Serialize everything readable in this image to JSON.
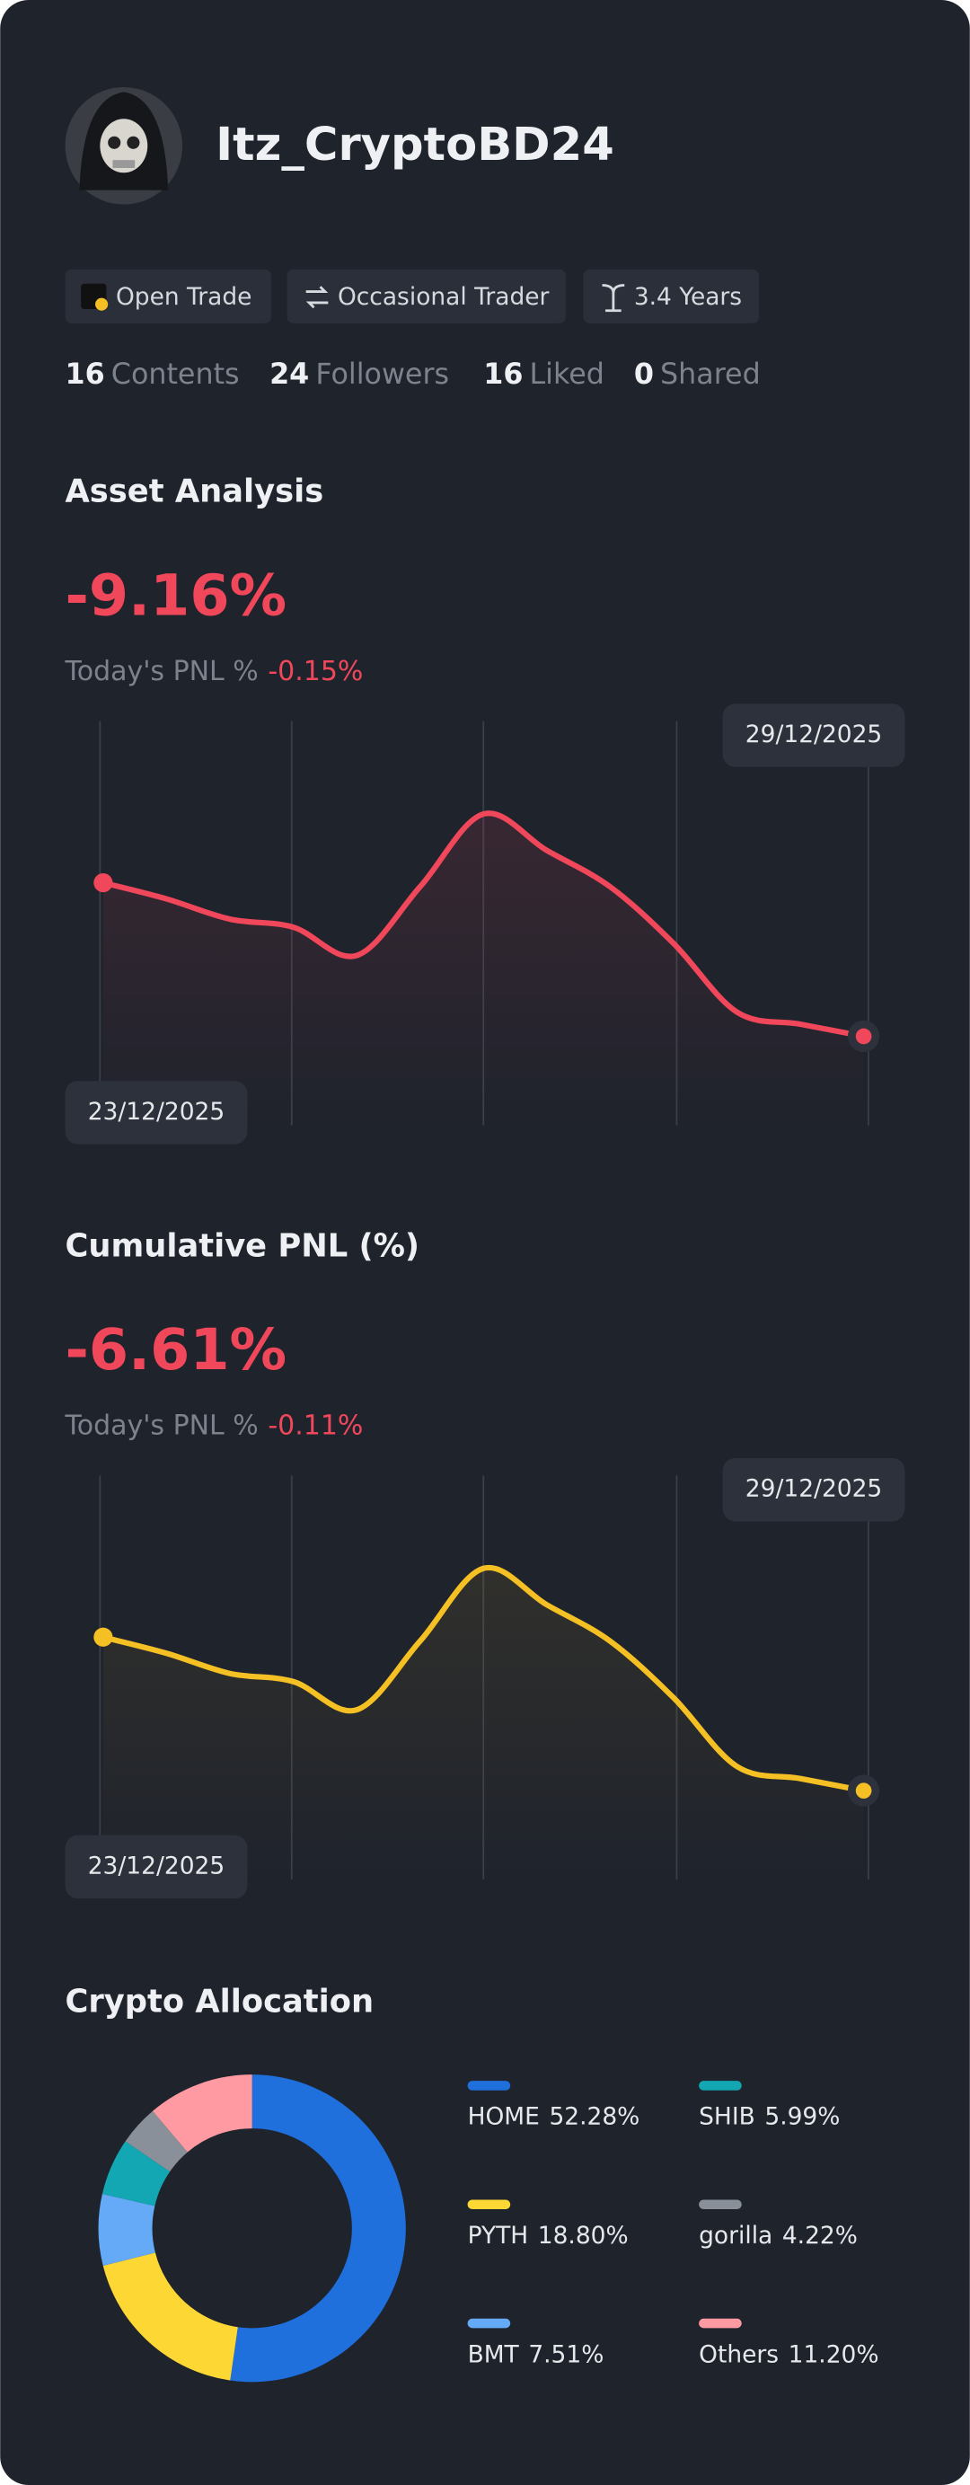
{
  "profile": {
    "name": "Itz_CryptoBD24",
    "tags": [
      "Open Trade",
      "Occasional Trader",
      "3.4 Years"
    ],
    "stats": [
      {
        "value": 16,
        "label": "Contents"
      },
      {
        "value": 24,
        "label": "Followers"
      },
      {
        "value": 16,
        "label": "Liked"
      },
      {
        "value": 0,
        "label": "Shared"
      }
    ]
  },
  "chart_data": [
    {
      "type": "line",
      "title": "Asset Analysis",
      "headline": "-9.16%",
      "subtitle": "Today's PNL %",
      "subtitle_value": "-0.15%",
      "categories": [
        "23/12/2025",
        null,
        null,
        null,
        null,
        null,
        null,
        null,
        null,
        null,
        null,
        null,
        "29/12/2025"
      ],
      "series": [
        {
          "color": "#f0475b",
          "values": [
            60,
            56,
            51,
            49,
            42,
            59,
            77,
            68,
            59,
            45,
            28,
            25,
            22
          ]
        }
      ],
      "ylim": [
        0,
        100
      ]
    },
    {
      "type": "line",
      "title": "Cumulative PNL (%)",
      "headline": "-6.61%",
      "subtitle": "Today's PNL %",
      "subtitle_value": "-0.11%",
      "categories": [
        "23/12/2025",
        null,
        null,
        null,
        null,
        null,
        null,
        null,
        null,
        null,
        null,
        null,
        "29/12/2025"
      ],
      "series": [
        {
          "color": "#f5c024",
          "values": [
            60,
            56,
            51,
            49,
            42,
            59,
            77,
            68,
            59,
            45,
            28,
            25,
            22
          ]
        }
      ],
      "ylim": [
        0,
        100
      ]
    },
    {
      "type": "pie",
      "title": "Crypto Allocation",
      "donut": true,
      "categories": [
        "HOME",
        "PYTH",
        "BMT",
        "SHIB",
        "gorilla",
        "Others"
      ],
      "values": [
        52.28,
        18.8,
        7.51,
        5.99,
        4.22,
        11.2
      ],
      "value_labels": [
        "52.28%",
        "18.80%",
        "7.51%",
        "5.99%",
        "4.22%",
        "11.20%"
      ],
      "colors": [
        "#1f6fdc",
        "#fdd835",
        "#64aaf6",
        "#13a6b3",
        "#8a9099",
        "#ff9aa2"
      ]
    }
  ]
}
